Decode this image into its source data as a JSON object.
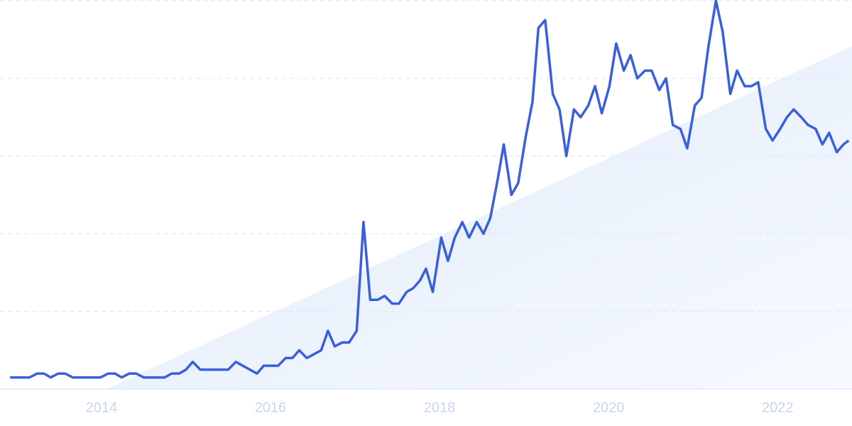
{
  "chart_data": {
    "type": "line",
    "x": [
      2012.92,
      2013.15,
      2013.24,
      2013.32,
      2013.4,
      2013.49,
      2013.57,
      2013.66,
      2013.99,
      2014.08,
      2014.16,
      2014.24,
      2014.33,
      2014.41,
      2014.5,
      2014.75,
      2014.83,
      2014.92,
      2015.0,
      2015.08,
      2015.17,
      2015.5,
      2015.59,
      2015.84,
      2015.92,
      2016.09,
      2016.18,
      2016.26,
      2016.34,
      2016.43,
      2016.6,
      2016.68,
      2016.76,
      2016.85,
      2016.93,
      2017.02,
      2017.1,
      2017.18,
      2017.27,
      2017.35,
      2017.44,
      2017.52,
      2017.61,
      2017.69,
      2017.77,
      2017.84,
      2017.92,
      2018.02,
      2018.1,
      2018.18,
      2018.27,
      2018.35,
      2018.44,
      2018.52,
      2018.6,
      2018.68,
      2018.76,
      2018.85,
      2018.93,
      2019.02,
      2019.1,
      2019.17,
      2019.25,
      2019.34,
      2019.42,
      2019.5,
      2019.59,
      2019.67,
      2019.76,
      2019.84,
      2019.92,
      2020.01,
      2020.09,
      2020.18,
      2020.26,
      2020.34,
      2020.43,
      2020.51,
      2020.6,
      2020.68,
      2020.76,
      2020.85,
      2020.93,
      2021.02,
      2021.1,
      2021.18,
      2021.27,
      2021.35,
      2021.44,
      2021.52,
      2021.61,
      2021.69,
      2021.77,
      2021.86,
      2021.94,
      2022.03,
      2022.11,
      2022.19,
      2022.28,
      2022.36,
      2022.45,
      2022.53,
      2022.61,
      2022.7,
      2022.78,
      2022.84
    ],
    "series": [
      {
        "color": "#3a5fdd",
        "values": [
          3,
          3,
          4,
          4,
          3,
          4,
          4,
          3,
          3,
          4,
          4,
          3,
          4,
          4,
          3,
          3,
          4,
          4,
          5,
          7,
          5,
          5,
          7,
          4,
          6,
          6,
          8,
          8,
          10,
          8,
          10,
          15,
          11,
          12,
          12,
          15,
          43,
          23,
          23,
          24,
          22,
          22,
          25,
          26,
          28,
          31,
          25,
          39,
          33,
          39,
          43,
          39,
          43,
          40,
          44,
          53,
          63,
          50,
          53,
          65,
          74,
          93,
          95,
          76,
          72,
          60,
          72,
          70,
          73,
          78,
          71,
          78,
          89,
          82,
          86,
          80,
          82,
          82,
          77,
          80,
          68,
          67,
          62,
          73,
          75,
          88,
          100,
          92,
          76,
          82,
          78,
          78,
          79,
          67,
          64,
          67,
          70,
          72,
          70,
          68,
          67,
          63,
          66,
          61,
          63,
          64
        ]
      }
    ],
    "xlim": [
      2012.8,
      2022.88
    ],
    "xticks": [
      2014,
      2016,
      2018,
      2020,
      2022
    ],
    "ylim": [
      0,
      100
    ],
    "yticks": [
      0,
      20,
      40,
      60,
      80,
      100
    ],
    "grid": true
  }
}
